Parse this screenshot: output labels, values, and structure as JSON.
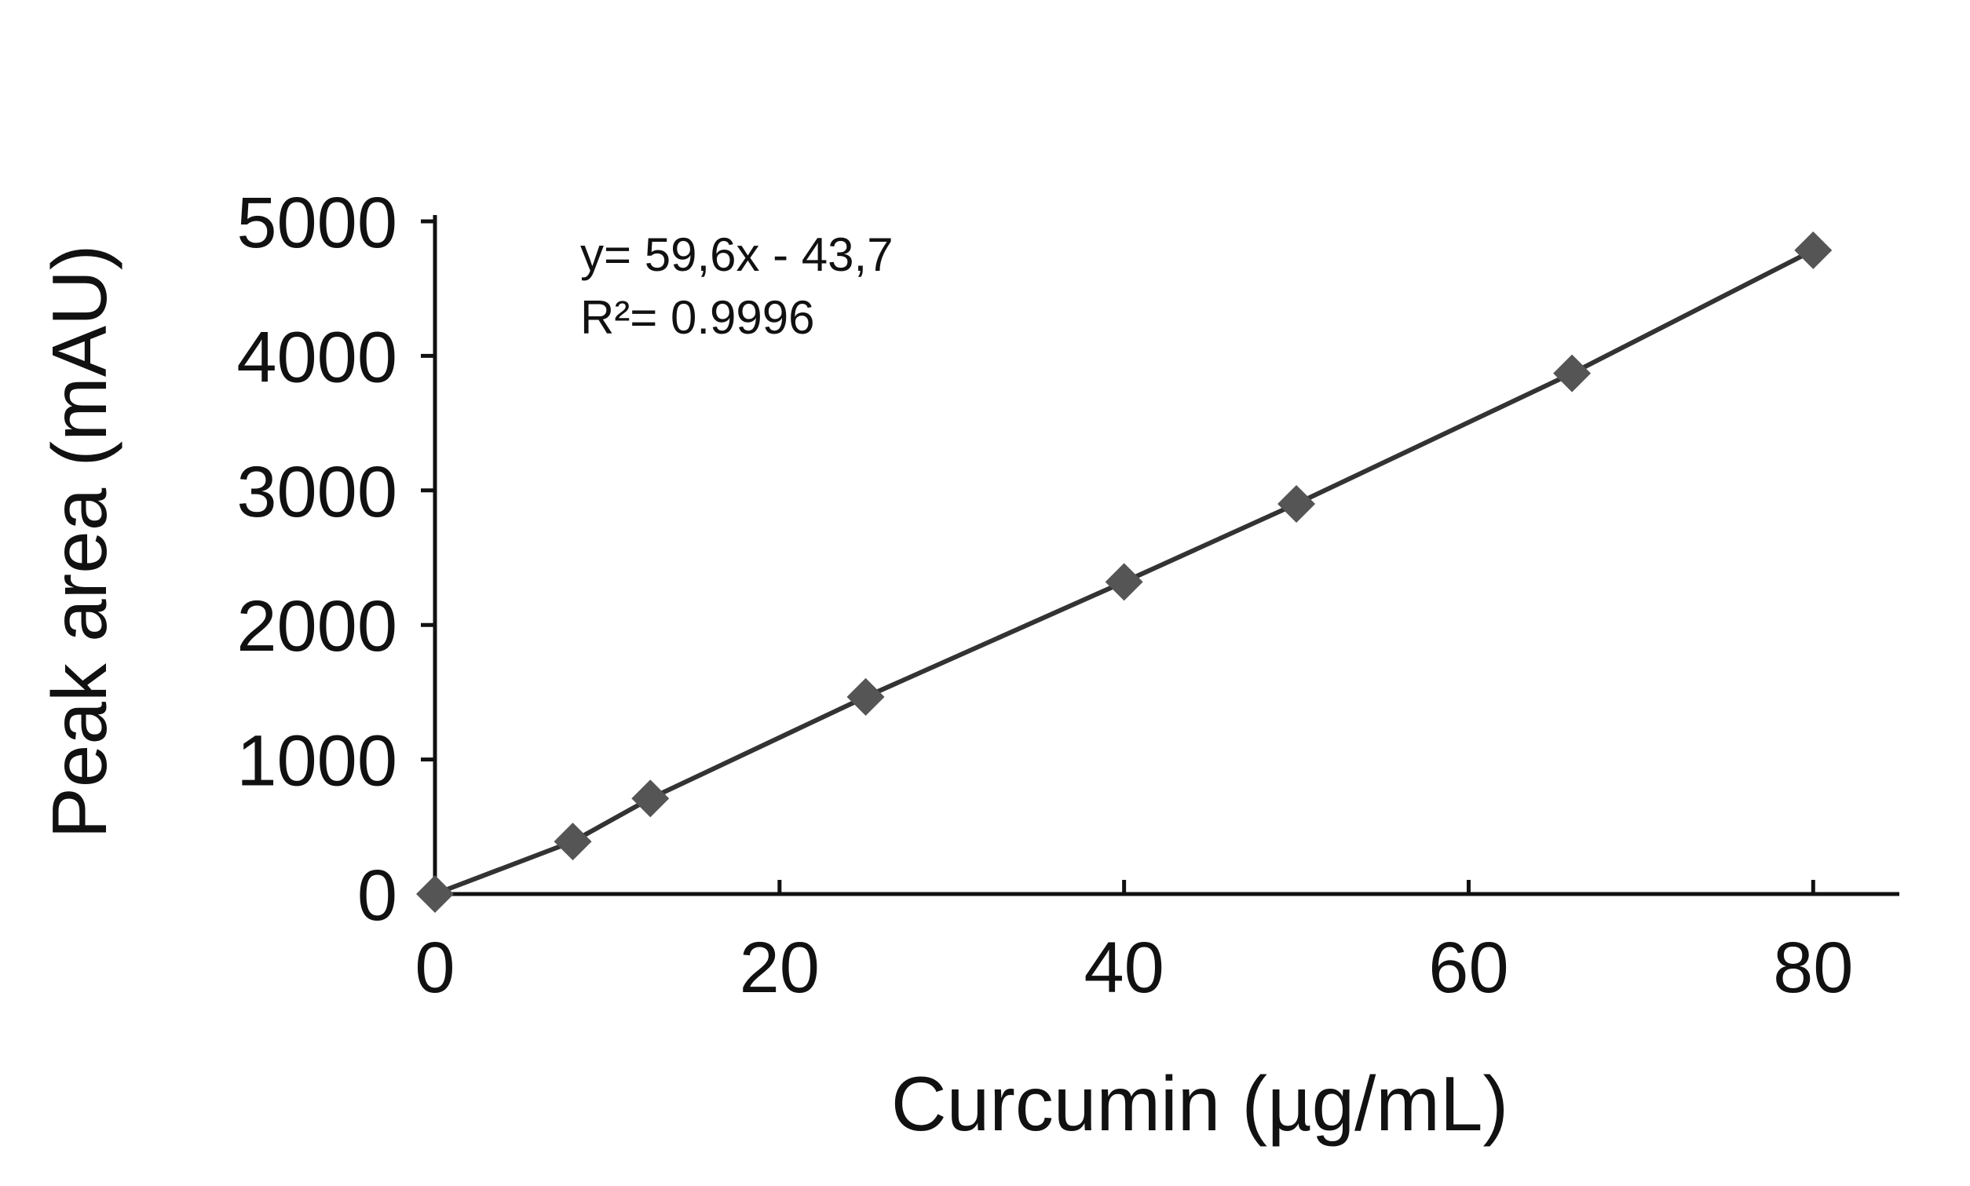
{
  "chart_data": {
    "type": "scatter",
    "xlabel": "Curcumin (µg/mL)",
    "ylabel": "Peak area (mAU)",
    "annotations": [
      "y= 59,6x - 43,7",
      "R²= 0.9996"
    ],
    "x": [
      0,
      8,
      12.5,
      25,
      40,
      50,
      66,
      80
    ],
    "values": [
      0,
      390,
      710,
      1465,
      2320,
      2900,
      3870,
      4785
    ],
    "color": "#555555",
    "line_color": "#333333",
    "xlim": [
      0,
      85
    ],
    "ylim": [
      0,
      5000
    ],
    "xticks": [
      0,
      20,
      40,
      60,
      80
    ],
    "yticks": [
      0,
      1000,
      2000,
      3000,
      4000,
      5000
    ]
  }
}
